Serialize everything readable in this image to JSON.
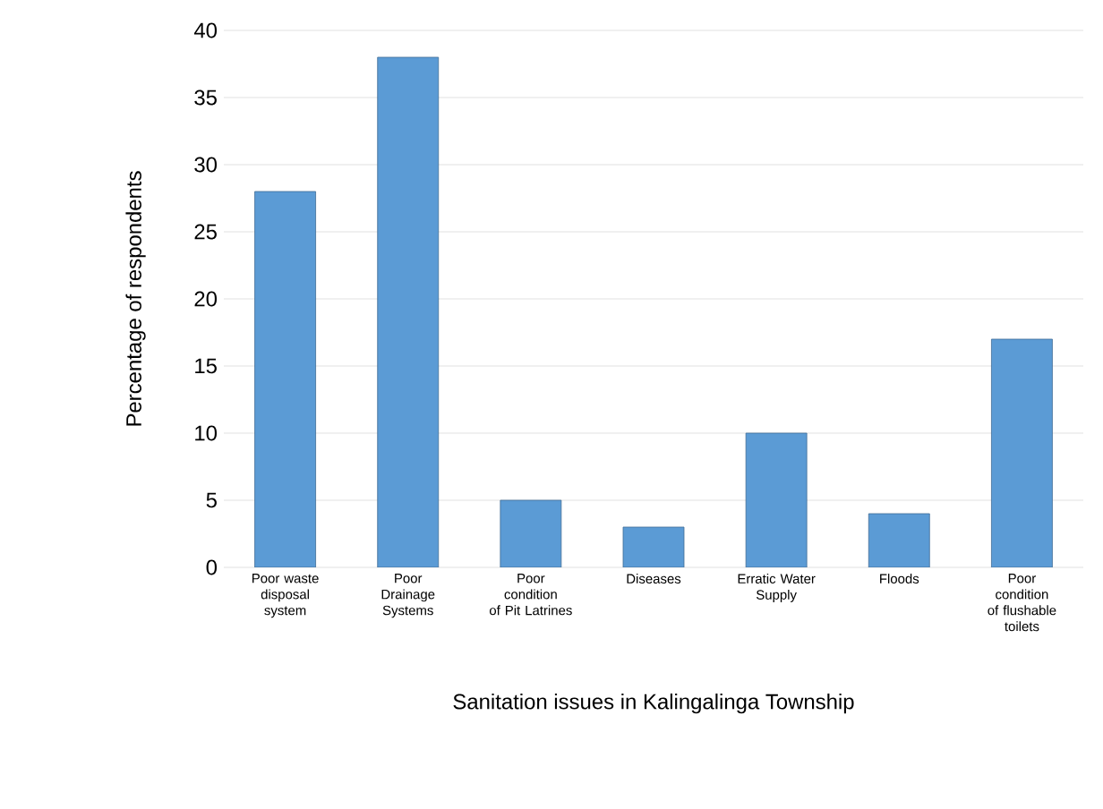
{
  "chart_data": {
    "type": "bar",
    "xlabel": "Sanitation issues in Kalingalinga Township",
    "ylabel": "Percentage of respondents",
    "categories": [
      "Poor waste disposal system",
      "Poor Drainage Systems",
      "Poor condition of Pit Latrines",
      "Diseases",
      "Erratic Water Supply",
      "Floods",
      "Poor condition of flushable toilets"
    ],
    "values": [
      28,
      38,
      5,
      3,
      10,
      4,
      17
    ],
    "color": "#5b9bd5",
    "ylim": [
      0,
      40
    ],
    "yticks": [
      0,
      5,
      10,
      15,
      20,
      25,
      30,
      35,
      40
    ],
    "grid": "y"
  }
}
